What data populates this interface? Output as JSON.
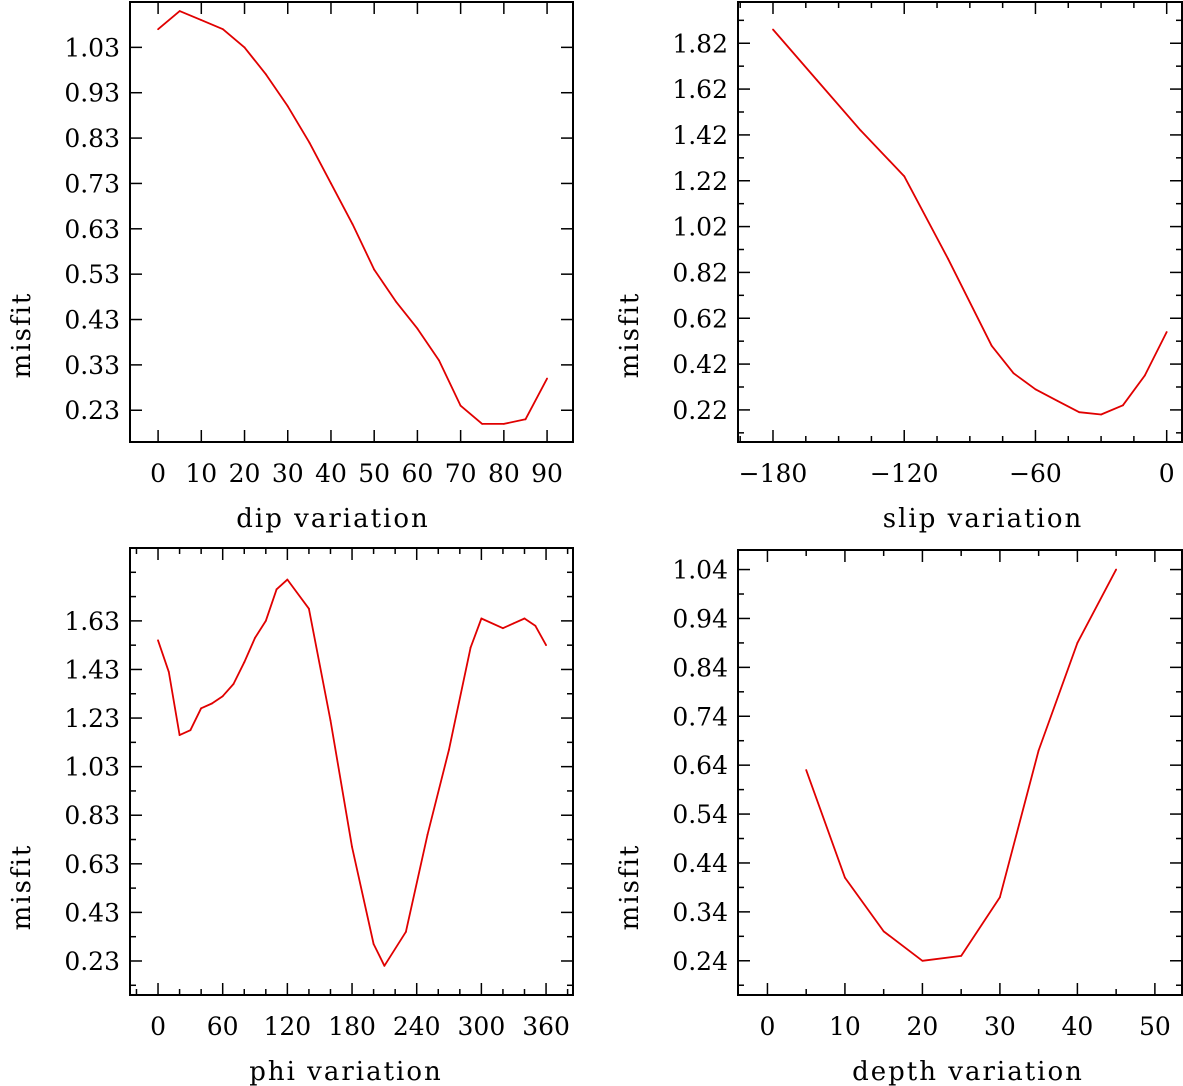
{
  "chart_data": [
    {
      "type": "line",
      "xlabel": "dip    variation",
      "ylabel": "misfit",
      "xlim": [
        -6.5,
        96
      ],
      "ylim": [
        0.16,
        1.13
      ],
      "xticks": [
        0,
        10,
        20,
        30,
        40,
        50,
        60,
        70,
        80,
        90
      ],
      "xtick_labels": [
        "0",
        "10",
        "20",
        "30",
        "40",
        "50",
        "60",
        "70",
        "80",
        "90"
      ],
      "yticks": [
        0.23,
        0.33,
        0.43,
        0.53,
        0.63,
        0.73,
        0.83,
        0.93,
        1.03
      ],
      "ytick_labels": [
        "0.23",
        "0.33",
        "0.43",
        "0.53",
        "0.63",
        "0.73",
        "0.83",
        "0.93",
        "1.03"
      ],
      "series": [
        {
          "name": "misfit",
          "color": "#e00000",
          "x": [
            0,
            5,
            10,
            15,
            20,
            25,
            30,
            35,
            40,
            45,
            50,
            55,
            60,
            65,
            70,
            75,
            80,
            85,
            90
          ],
          "y": [
            1.07,
            1.11,
            1.09,
            1.07,
            1.03,
            0.97,
            0.9,
            0.82,
            0.73,
            0.64,
            0.54,
            0.47,
            0.41,
            0.34,
            0.24,
            0.2,
            0.2,
            0.21,
            0.3
          ]
        }
      ]
    },
    {
      "type": "line",
      "xlabel": "slip    variation",
      "ylabel": "misfit",
      "xlim": [
        -196,
        7
      ],
      "ylim": [
        0.08,
        2.0
      ],
      "xticks": [
        -180,
        -120,
        -60,
        0
      ],
      "xtick_labels": [
        "−180",
        "−120",
        "−60",
        "0"
      ],
      "yticks": [
        0.22,
        0.42,
        0.62,
        0.82,
        1.02,
        1.22,
        1.42,
        1.62,
        1.82
      ],
      "ytick_labels": [
        "0.22",
        "0.42",
        "0.62",
        "0.82",
        "1.02",
        "1.22",
        "1.42",
        "1.62",
        "1.82"
      ],
      "series": [
        {
          "name": "misfit",
          "color": "#e00000",
          "x": [
            -180,
            -160,
            -140,
            -120,
            -100,
            -80,
            -70,
            -60,
            -50,
            -40,
            -30,
            -20,
            -10,
            0
          ],
          "y": [
            1.88,
            1.66,
            1.44,
            1.24,
            0.88,
            0.5,
            0.38,
            0.31,
            0.26,
            0.21,
            0.2,
            0.24,
            0.37,
            0.56
          ]
        }
      ]
    },
    {
      "type": "line",
      "xlabel": "phi    variation",
      "ylabel": "misfit",
      "xlim": [
        -26,
        385
      ],
      "ylim": [
        0.09,
        1.93
      ],
      "xticks": [
        0,
        60,
        120,
        180,
        240,
        300,
        360
      ],
      "xtick_labels": [
        "0",
        "60",
        "120",
        "180",
        "240",
        "300",
        "360"
      ],
      "yticks": [
        0.23,
        0.43,
        0.63,
        0.83,
        1.03,
        1.23,
        1.43,
        1.63
      ],
      "ytick_labels": [
        "0.23",
        "0.43",
        "0.63",
        "0.83",
        "1.03",
        "1.23",
        "1.43",
        "1.63"
      ],
      "series": [
        {
          "name": "misfit",
          "color": "#e00000",
          "x": [
            0,
            10,
            20,
            30,
            40,
            50,
            60,
            70,
            80,
            90,
            100,
            110,
            120,
            140,
            160,
            180,
            200,
            210,
            230,
            250,
            270,
            290,
            300,
            320,
            330,
            340,
            350,
            360
          ],
          "y": [
            1.55,
            1.42,
            1.16,
            1.18,
            1.27,
            1.29,
            1.32,
            1.37,
            1.46,
            1.56,
            1.63,
            1.76,
            1.8,
            1.68,
            1.22,
            0.7,
            0.3,
            0.21,
            0.35,
            0.75,
            1.1,
            1.52,
            1.64,
            1.6,
            1.62,
            1.64,
            1.61,
            1.53
          ]
        }
      ]
    },
    {
      "type": "line",
      "xlabel": "depth    variation",
      "ylabel": "misfit",
      "xlim": [
        -3.8,
        53.5
      ],
      "ylim": [
        0.17,
        1.08
      ],
      "xticks": [
        0,
        10,
        20,
        30,
        40,
        50
      ],
      "xtick_labels": [
        "0",
        "10",
        "20",
        "30",
        "40",
        "50"
      ],
      "yticks": [
        0.24,
        0.34,
        0.44,
        0.54,
        0.64,
        0.74,
        0.84,
        0.94,
        1.04
      ],
      "ytick_labels": [
        "0.24",
        "0.34",
        "0.44",
        "0.54",
        "0.64",
        "0.74",
        "0.84",
        "0.94",
        "1.04"
      ],
      "series": [
        {
          "name": "misfit",
          "color": "#e00000",
          "x": [
            5,
            10,
            15,
            20,
            25,
            30,
            35,
            40,
            45
          ],
          "y": [
            0.63,
            0.41,
            0.3,
            0.24,
            0.25,
            0.37,
            0.67,
            0.89,
            1.04
          ]
        }
      ]
    }
  ]
}
